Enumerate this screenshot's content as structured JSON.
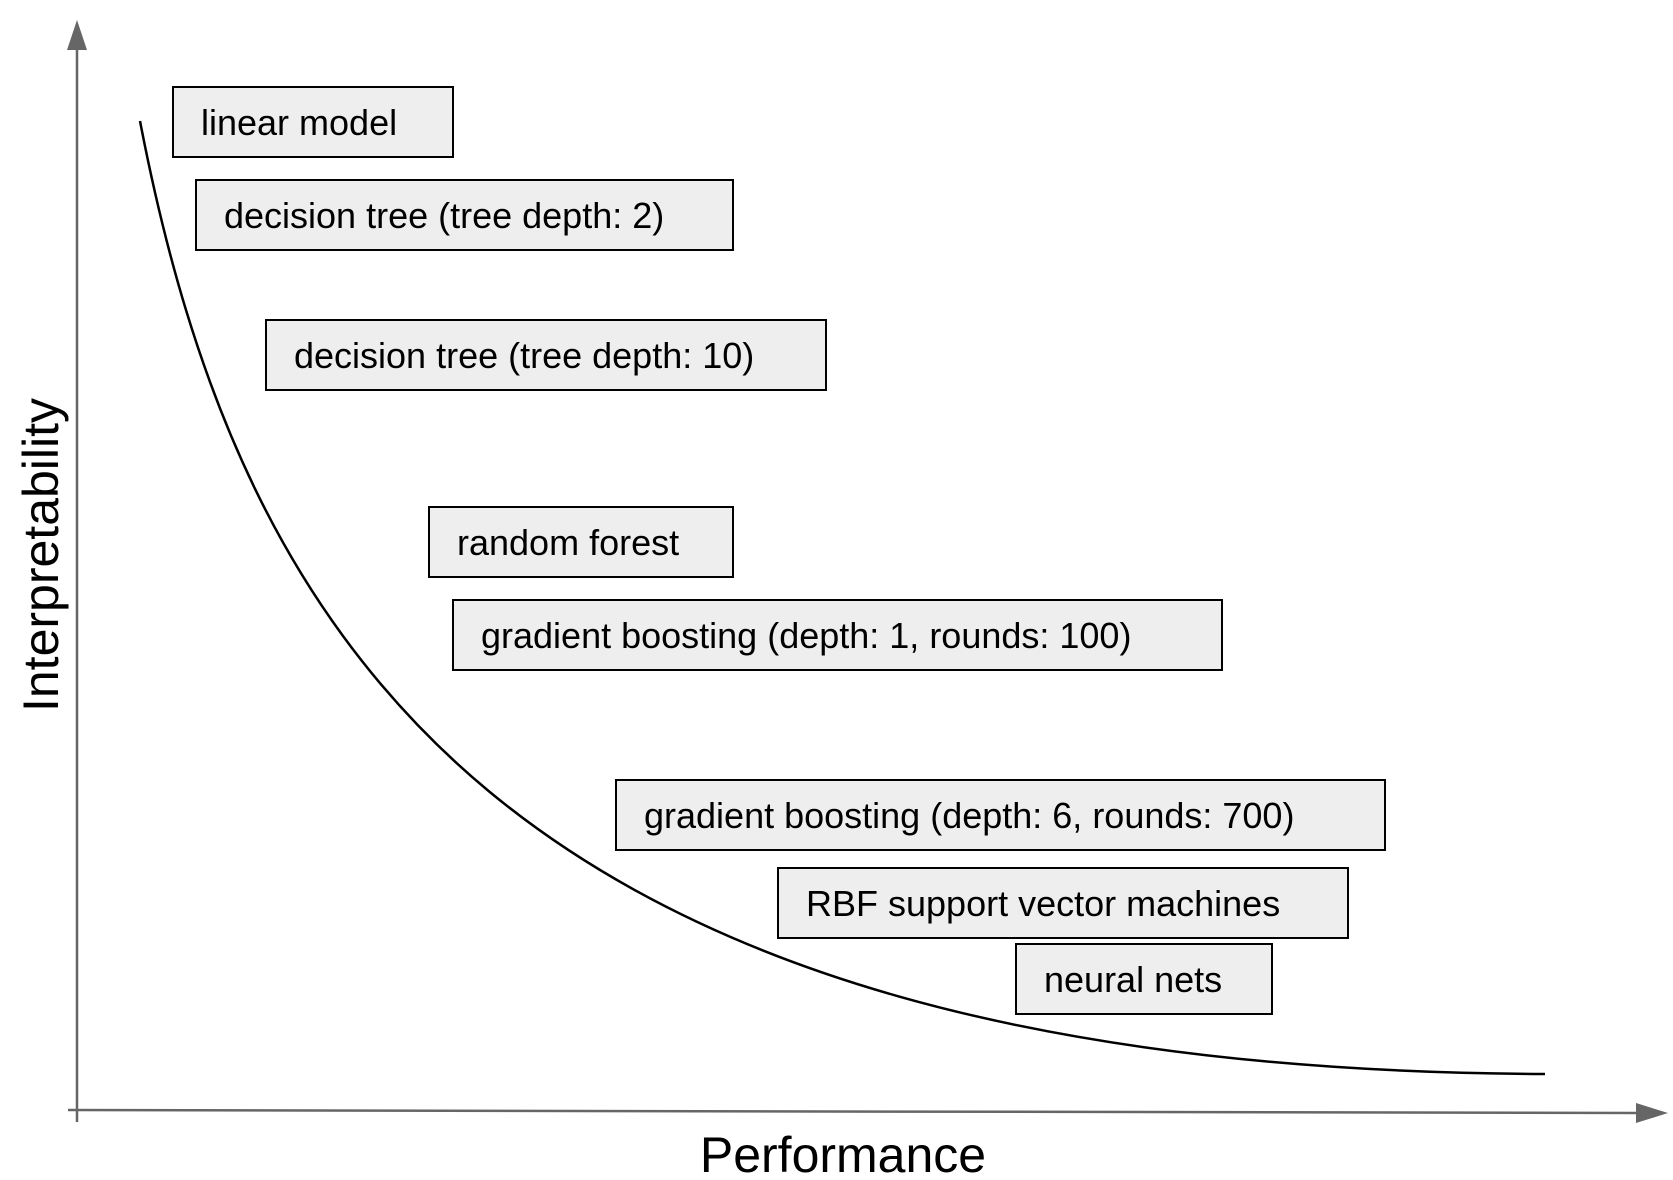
{
  "axes": {
    "x_label": "Performance",
    "y_label": "Interpretability"
  },
  "models": [
    {
      "label": "linear model"
    },
    {
      "label": "decision tree (tree depth: 2)"
    },
    {
      "label": "decision tree (tree depth: 10)"
    },
    {
      "label": "random forest"
    },
    {
      "label": "gradient boosting (depth: 1, rounds: 100)"
    },
    {
      "label": "gradient boosting (depth: 6, rounds: 700)"
    },
    {
      "label": "RBF support vector machines"
    },
    {
      "label": "neural nets"
    }
  ],
  "colors": {
    "box_fill": "#eeeeee",
    "box_border": "#000000",
    "axis": "#666666",
    "curve": "#000000"
  }
}
